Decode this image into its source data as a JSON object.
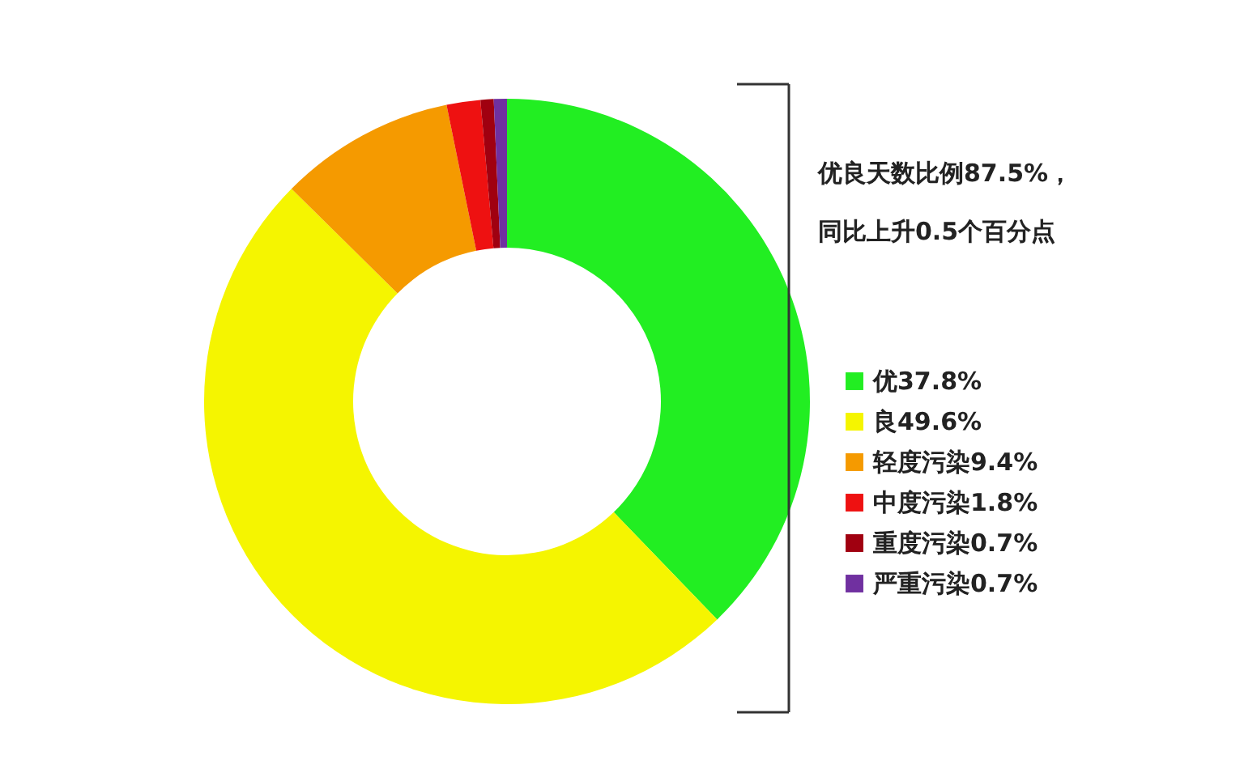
{
  "chart_data": {
    "type": "donut",
    "categories": [
      "优37.8%",
      "良49.6%",
      "轻度污染9.4%",
      "中度污染1.8%",
      "重度污染0.7%",
      "严重污染0.7%"
    ],
    "values": [
      37.8,
      49.6,
      9.4,
      1.8,
      0.7,
      0.7
    ],
    "colors": [
      "#22ee22",
      "#f5f500",
      "#f59a00",
      "#ee1111",
      "#a00010",
      "#7030a0"
    ],
    "annotations": [
      "优良天数比例87.5%，",
      "同比上升0.5个百分点"
    ],
    "legend": "right"
  }
}
